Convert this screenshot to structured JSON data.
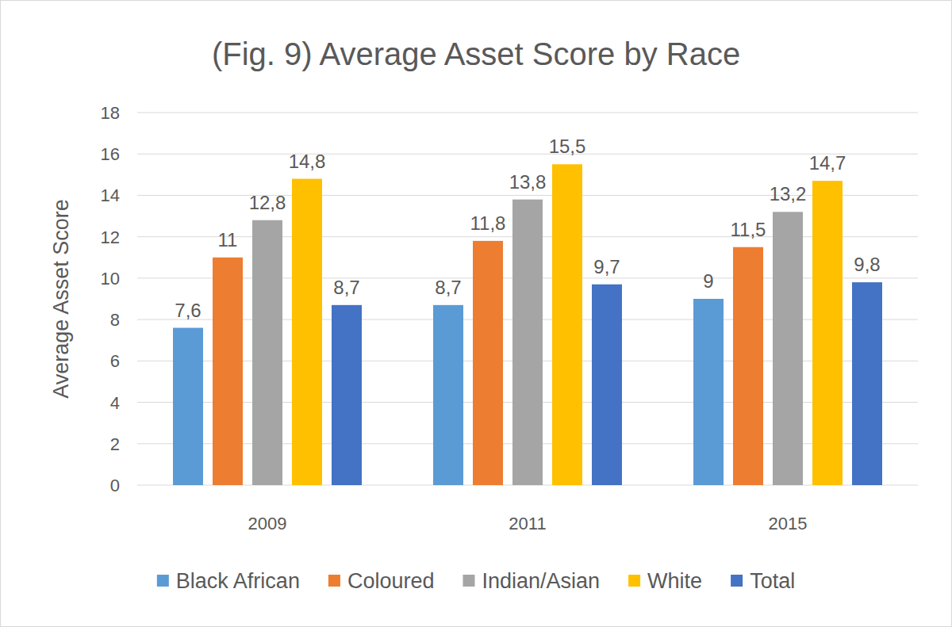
{
  "chart_data": {
    "type": "bar",
    "title": "(Fig. 9) Average Asset Score by Race",
    "y_label": "Average Asset Score",
    "categories": [
      "2009",
      "2011",
      "2015"
    ],
    "series": [
      {
        "name": "Black African",
        "color": "#5b9bd5",
        "values": [
          7.6,
          8.7,
          9
        ],
        "value_labels": [
          "7,6",
          "8,7",
          "9"
        ]
      },
      {
        "name": "Coloured",
        "color": "#ed7d31",
        "values": [
          11,
          11.8,
          11.5
        ],
        "value_labels": [
          "11",
          "11,8",
          "11,5"
        ]
      },
      {
        "name": "Indian/Asian",
        "color": "#a5a5a5",
        "values": [
          12.8,
          13.8,
          13.2
        ],
        "value_labels": [
          "12,8",
          "13,8",
          "13,2"
        ]
      },
      {
        "name": "White",
        "color": "#ffc000",
        "values": [
          14.8,
          15.5,
          14.7
        ],
        "value_labels": [
          "14,8",
          "15,5",
          "14,7"
        ]
      },
      {
        "name": "Total",
        "color": "#4472c4",
        "values": [
          8.7,
          9.7,
          9.8
        ],
        "value_labels": [
          "8,7",
          "9,7",
          "9,8"
        ]
      }
    ],
    "ylim": [
      0,
      18
    ],
    "yticks": [
      0,
      2,
      4,
      6,
      8,
      10,
      12,
      14,
      16,
      18
    ],
    "grid": true,
    "legend": "bottom",
    "data_labels": true
  }
}
